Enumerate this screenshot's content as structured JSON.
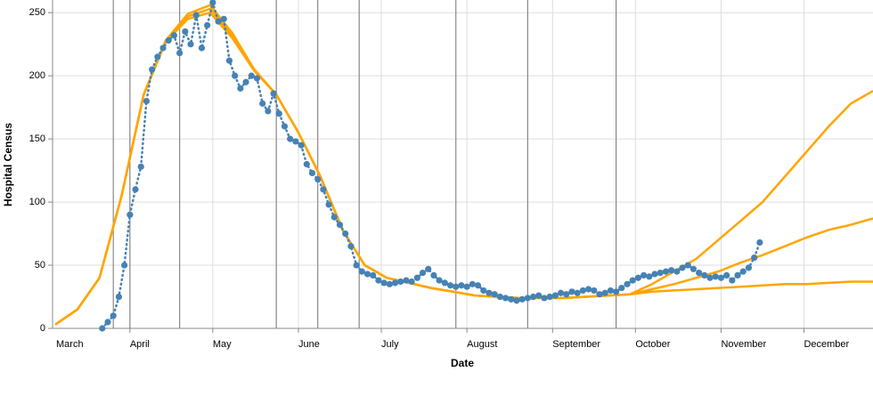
{
  "chart_data": {
    "type": "line",
    "x_label": "Date",
    "y_label": "Hospital Census",
    "xlim": [
      3,
      300
    ],
    "ylim": [
      0,
      260
    ],
    "xticks": [
      {
        "value": 0,
        "label": "March"
      },
      {
        "value": 31,
        "label": "April"
      },
      {
        "value": 61,
        "label": "May"
      },
      {
        "value": 92,
        "label": "June"
      },
      {
        "value": 122,
        "label": "July"
      },
      {
        "value": 153,
        "label": "August"
      },
      {
        "value": 184,
        "label": "September"
      },
      {
        "value": 214,
        "label": "October"
      },
      {
        "value": 245,
        "label": "November"
      },
      {
        "value": 275,
        "label": "December"
      }
    ],
    "yticks": [
      0,
      50,
      100,
      150,
      200,
      250
    ],
    "grid": true,
    "rules": {
      "color": "#888888",
      "x": [
        25,
        31,
        49,
        84,
        99,
        114,
        149,
        175,
        207
      ]
    },
    "series": [
      {
        "color": "#ffa500",
        "style": "line",
        "x": [
          4,
          12,
          20,
          28,
          36,
          44,
          52,
          60,
          68,
          76,
          84,
          92,
          100,
          108,
          116,
          124,
          132,
          140,
          148,
          156,
          164,
          172,
          180,
          188,
          196,
          204,
          212,
          220,
          228,
          236,
          244,
          252,
          260,
          268,
          276,
          284,
          292,
          300
        ],
        "values": [
          3,
          15,
          40,
          105,
          185,
          228,
          249,
          256,
          234,
          205,
          185,
          155,
          120,
          78,
          50,
          40,
          36,
          32,
          29,
          26,
          25,
          24,
          24,
          24,
          25,
          26,
          27,
          35,
          45,
          55,
          70,
          85,
          100,
          120,
          140,
          160,
          178,
          188
        ]
      },
      {
        "color": "#ffa500",
        "style": "line",
        "x": [
          4,
          12,
          20,
          28,
          36,
          44,
          52,
          60,
          68,
          76,
          84,
          92,
          100,
          108,
          116,
          124,
          132,
          140,
          148,
          156,
          164,
          172,
          180,
          188,
          196,
          204,
          212,
          220,
          228,
          236,
          244,
          252,
          260,
          268,
          276,
          284,
          292,
          300
        ],
        "values": [
          3,
          15,
          40,
          105,
          185,
          228,
          247,
          253,
          232,
          205,
          185,
          155,
          120,
          78,
          50,
          40,
          36,
          32,
          29,
          26,
          25,
          24,
          24,
          24,
          25,
          26,
          27,
          31,
          35,
          40,
          45,
          52,
          58,
          65,
          72,
          78,
          82,
          87
        ]
      },
      {
        "color": "#ffa500",
        "style": "line",
        "x": [
          4,
          12,
          20,
          28,
          36,
          44,
          52,
          60,
          68,
          76,
          84,
          92,
          100,
          108,
          116,
          124,
          132,
          140,
          148,
          156,
          164,
          172,
          180,
          188,
          196,
          204,
          212,
          220,
          228,
          236,
          244,
          252,
          260,
          268,
          276,
          284,
          292,
          300
        ],
        "values": [
          3,
          15,
          40,
          105,
          185,
          227,
          245,
          250,
          230,
          204,
          185,
          155,
          120,
          78,
          50,
          40,
          36,
          32,
          29,
          26,
          25,
          24,
          24,
          24,
          25,
          26,
          27,
          29,
          30,
          31,
          32,
          33,
          34,
          35,
          35,
          36,
          37,
          37
        ]
      },
      {
        "color": "#4682b4",
        "style": "dots",
        "x": [
          21,
          23,
          25,
          27,
          29,
          31,
          33,
          35,
          37,
          39,
          41,
          43,
          45,
          47,
          49,
          51,
          53,
          55,
          57,
          59,
          61,
          63,
          65,
          67,
          69,
          71,
          73,
          75,
          77,
          79,
          81,
          83,
          85,
          87,
          89,
          91,
          93,
          95,
          97,
          99,
          101,
          103,
          105,
          107,
          109,
          111,
          113,
          115,
          117,
          119,
          121,
          123,
          125,
          127,
          129,
          131,
          133,
          135,
          137,
          139,
          141,
          143,
          145,
          147,
          149,
          151,
          153,
          155,
          157,
          159,
          161,
          163,
          165,
          167,
          169,
          171,
          173,
          175,
          177,
          179,
          181,
          183,
          185,
          187,
          189,
          191,
          193,
          195,
          197,
          199,
          201,
          203,
          205,
          207,
          209,
          211,
          213,
          215,
          217,
          219,
          221,
          223,
          225,
          227,
          229,
          231,
          233,
          235,
          237,
          239,
          241,
          243,
          245,
          247,
          249,
          251,
          253,
          255,
          257,
          259
        ],
        "values": [
          0,
          5,
          10,
          25,
          50,
          90,
          110,
          128,
          180,
          205,
          215,
          222,
          228,
          232,
          218,
          235,
          225,
          248,
          222,
          240,
          258,
          243,
          245,
          212,
          200,
          190,
          195,
          200,
          198,
          178,
          172,
          186,
          170,
          160,
          150,
          148,
          145,
          130,
          123,
          118,
          110,
          98,
          88,
          82,
          75,
          65,
          50,
          45,
          43,
          42,
          38,
          36,
          35,
          36,
          37,
          38,
          37,
          40,
          44,
          47,
          42,
          38,
          36,
          34,
          33,
          34,
          33,
          35,
          34,
          30,
          28,
          27,
          25,
          24,
          23,
          22,
          23,
          24,
          25,
          26,
          24,
          25,
          26,
          28,
          27,
          29,
          28,
          30,
          31,
          30,
          27,
          28,
          30,
          29,
          32,
          35,
          38,
          40,
          42,
          41,
          43,
          44,
          45,
          46,
          45,
          48,
          50,
          47,
          44,
          42,
          40,
          41,
          40,
          42,
          38,
          42,
          45,
          48,
          56,
          68
        ]
      }
    ]
  }
}
